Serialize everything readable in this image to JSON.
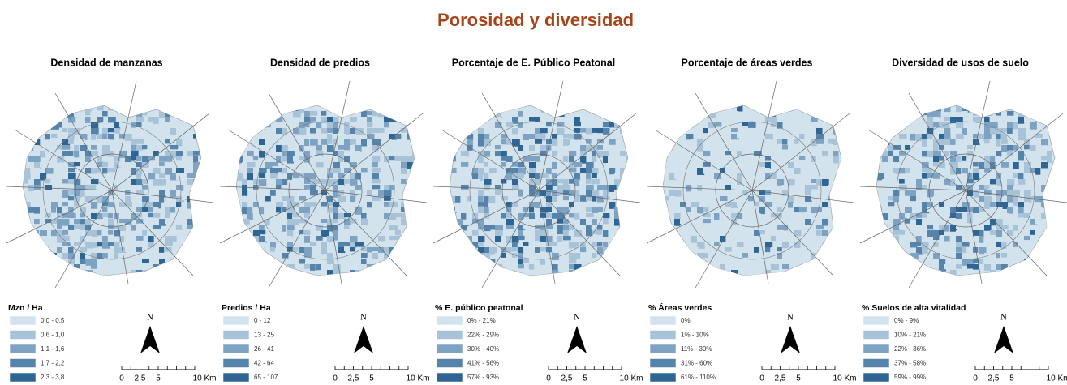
{
  "title": "Porosidad y diversidad",
  "panels": [
    {
      "title": "Densidad de manzanas",
      "legend_title": "Mzn / Ha",
      "legend": [
        "0,0 - 0,5",
        "0,6 - 1,0",
        "1,1 - 1,6",
        "1,7 - 2,2",
        "2,3 - 3,8"
      ]
    },
    {
      "title": "Densidad de predios",
      "legend_title": "Predios / Ha",
      "legend": [
        "0 - 12",
        "13 - 25",
        "26 - 41",
        "42 - 64",
        "65 - 107"
      ]
    },
    {
      "title": "Porcentaje de E. Público Peatonal",
      "legend_title": "% E. público peatonal",
      "legend": [
        "0% - 21%",
        "22% - 29%",
        "30% - 40%",
        "41% - 56%",
        "57% - 93%"
      ]
    },
    {
      "title": "Porcentaje de áreas verdes",
      "legend_title": "% Áreas verdes",
      "legend": [
        "0%",
        "1% - 10%",
        "11% - 30%",
        "31% - 60%",
        "61% - 110%"
      ]
    },
    {
      "title": "Diversidad de usos de suelo",
      "legend_title": "% Suelos de alta vitalidad",
      "legend": [
        "0% - 9%",
        "10% - 21%",
        "22% - 36%",
        "37% - 58%",
        "59% - 99%"
      ]
    }
  ],
  "legend_colors": [
    "#d3e3ed",
    "#a8c3d7",
    "#7ea2c1",
    "#5583aa",
    "#2f6592"
  ],
  "north": "N",
  "scale": [
    "0",
    "2,5",
    "5",
    "10 Km"
  ]
}
